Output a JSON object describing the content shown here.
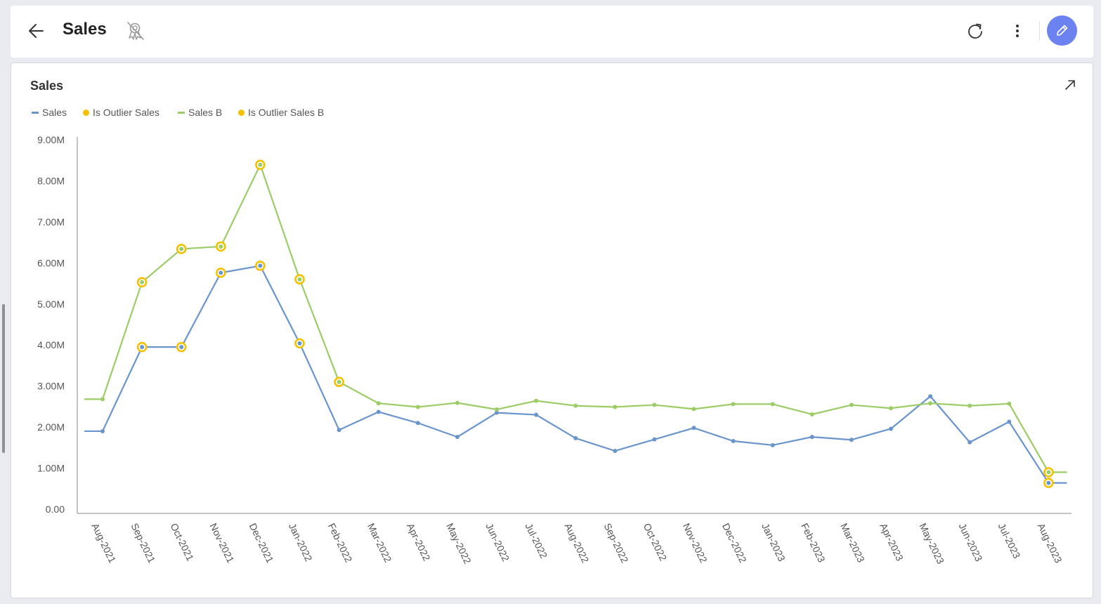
{
  "header": {
    "title": "Sales",
    "icons": {
      "back": "arrow-left-icon",
      "certified": "certification-off-icon",
      "refresh": "refresh-icon",
      "more": "more-vertical-icon",
      "edit": "pencil-icon"
    }
  },
  "widget": {
    "title": "Sales",
    "expand_icon": "expand-arrow-icon"
  },
  "colors": {
    "sales": "#6a95cc",
    "sales_b": "#9ccc65",
    "outlier": "#f5c000",
    "edit_button": "#6b82f0"
  },
  "chart_data": {
    "type": "line",
    "title": "Sales",
    "categories": [
      "Aug-2021",
      "Sep-2021",
      "Oct-2021",
      "Nov-2021",
      "Dec-2021",
      "Jan-2022",
      "Feb-2022",
      "Mar-2022",
      "Apr-2022",
      "May-2022",
      "Jun-2022",
      "Jul-2022",
      "Aug-2022",
      "Sep-2022",
      "Oct-2022",
      "Nov-2022",
      "Dec-2022",
      "Jan-2023",
      "Feb-2023",
      "Mar-2023",
      "Apr-2023",
      "May-2023",
      "Jun-2023",
      "Jul-2023",
      "Aug-2023"
    ],
    "y_ticks": [
      "0.00",
      "1.00M",
      "2.00M",
      "3.00M",
      "4.00M",
      "5.00M",
      "6.00M",
      "7.00M",
      "8.00M",
      "9.00M"
    ],
    "ylim": [
      0,
      9000000
    ],
    "legend_position": "top-left",
    "grid": false,
    "legend": [
      {
        "name": "Sales",
        "kind": "line",
        "color": "#6a95cc"
      },
      {
        "name": "Is Outlier Sales",
        "kind": "dot",
        "color": "#f5c000"
      },
      {
        "name": "Sales B",
        "kind": "line",
        "color": "#9ccc65"
      },
      {
        "name": "Is Outlier Sales B",
        "kind": "dot",
        "color": "#f5c000"
      }
    ],
    "series": [
      {
        "name": "Sales",
        "color": "#6a95cc",
        "values": [
          1900000,
          3950000,
          3950000,
          5760000,
          5930000,
          4040000,
          1930000,
          2370000,
          2100000,
          1760000,
          2350000,
          2300000,
          1730000,
          1420000,
          1700000,
          1980000,
          1660000,
          1560000,
          1760000,
          1690000,
          1960000,
          2750000,
          1630000,
          2130000,
          640000
        ],
        "outliers": [
          1,
          2,
          3,
          4,
          5,
          24
        ]
      },
      {
        "name": "Sales B",
        "color": "#9ccc65",
        "values": [
          2680000,
          5530000,
          6340000,
          6400000,
          8390000,
          5600000,
          3100000,
          2580000,
          2490000,
          2590000,
          2430000,
          2640000,
          2520000,
          2490000,
          2540000,
          2440000,
          2560000,
          2560000,
          2310000,
          2540000,
          2460000,
          2580000,
          2520000,
          2570000,
          900000
        ],
        "outliers": [
          1,
          2,
          3,
          4,
          5,
          6,
          24
        ]
      }
    ]
  }
}
